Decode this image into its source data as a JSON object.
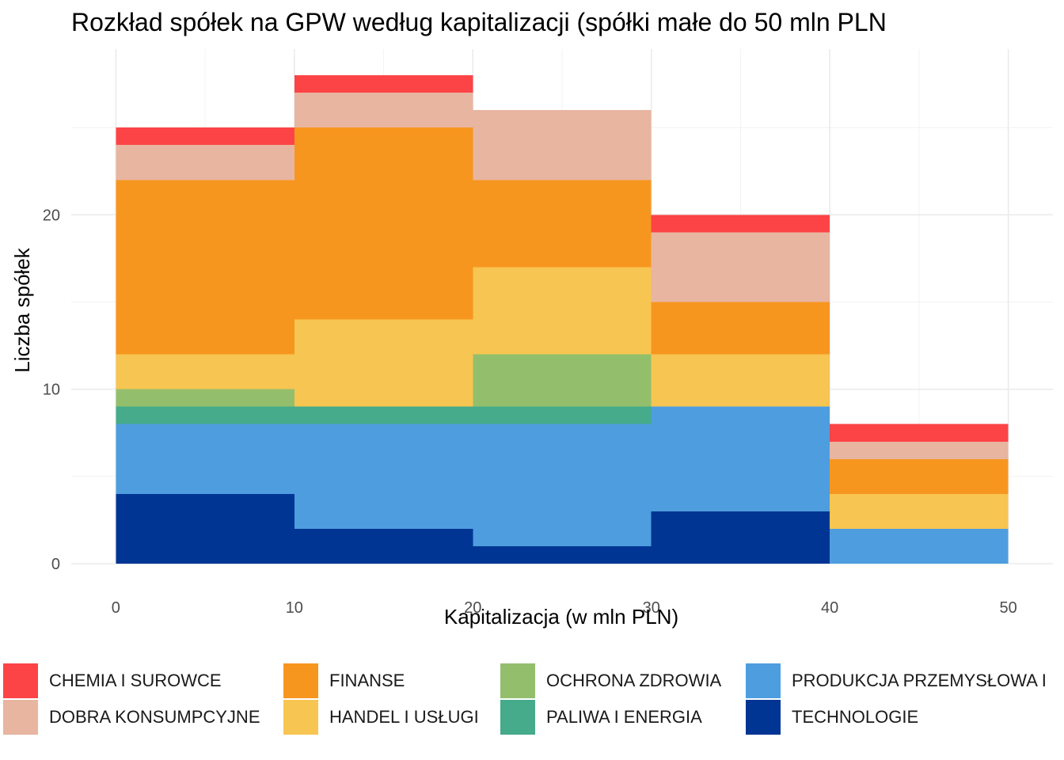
{
  "chart_data": {
    "type": "bar",
    "title": "Rozkład spółek na GPW według kapitalizacji (spółki małe do 50 mln PLN",
    "xlabel": "Kapitalizacja (w mln PLN)",
    "ylabel": "Liczba spółek",
    "bins": [
      [
        0,
        10
      ],
      [
        10,
        20
      ],
      [
        20,
        30
      ],
      [
        30,
        40
      ],
      [
        40,
        50
      ]
    ],
    "xlim": [
      -2.5,
      52.5
    ],
    "ylim": [
      0,
      29.5
    ],
    "x_ticks": [
      0,
      10,
      20,
      30,
      40,
      50
    ],
    "y_ticks": [
      0,
      10,
      20
    ],
    "grid": true,
    "legend_position": "bottom",
    "series": [
      {
        "name": "TECHNOLOGIE",
        "color": "#003594",
        "values": [
          4,
          2,
          1,
          3,
          0
        ]
      },
      {
        "name": "PRODUKCJA PRZEMYSŁOWA I",
        "color": "#4e9ddf",
        "values": [
          4,
          6,
          7,
          6,
          2
        ]
      },
      {
        "name": "PALIWA I ENERGIA",
        "color": "#45ab8a",
        "values": [
          1,
          1,
          1,
          0,
          0
        ]
      },
      {
        "name": "OCHRONA ZDROWIA",
        "color": "#93bf6c",
        "values": [
          1,
          0,
          3,
          0,
          0
        ]
      },
      {
        "name": "HANDEL I USŁUGI",
        "color": "#f7c551",
        "values": [
          2,
          5,
          5,
          3,
          2
        ]
      },
      {
        "name": "FINANSE",
        "color": "#f7961f",
        "values": [
          10,
          11,
          5,
          3,
          2
        ]
      },
      {
        "name": "DOBRA KONSUMPCYJNE",
        "color": "#e8b5a0",
        "values": [
          2,
          2,
          4,
          4,
          1
        ]
      },
      {
        "name": "CHEMIA I SUROWCE",
        "color": "#fc4446",
        "values": [
          1,
          1,
          0,
          1,
          1
        ]
      }
    ],
    "legend_order": [
      "CHEMIA I SUROWCE",
      "DOBRA KONSUMPCYJNE",
      "FINANSE",
      "HANDEL I USŁUGI",
      "OCHRONA ZDROWIA",
      "PALIWA I ENERGIA",
      "PRODUKCJA PRZEMYSŁOWA I",
      "TECHNOLOGIE"
    ]
  }
}
